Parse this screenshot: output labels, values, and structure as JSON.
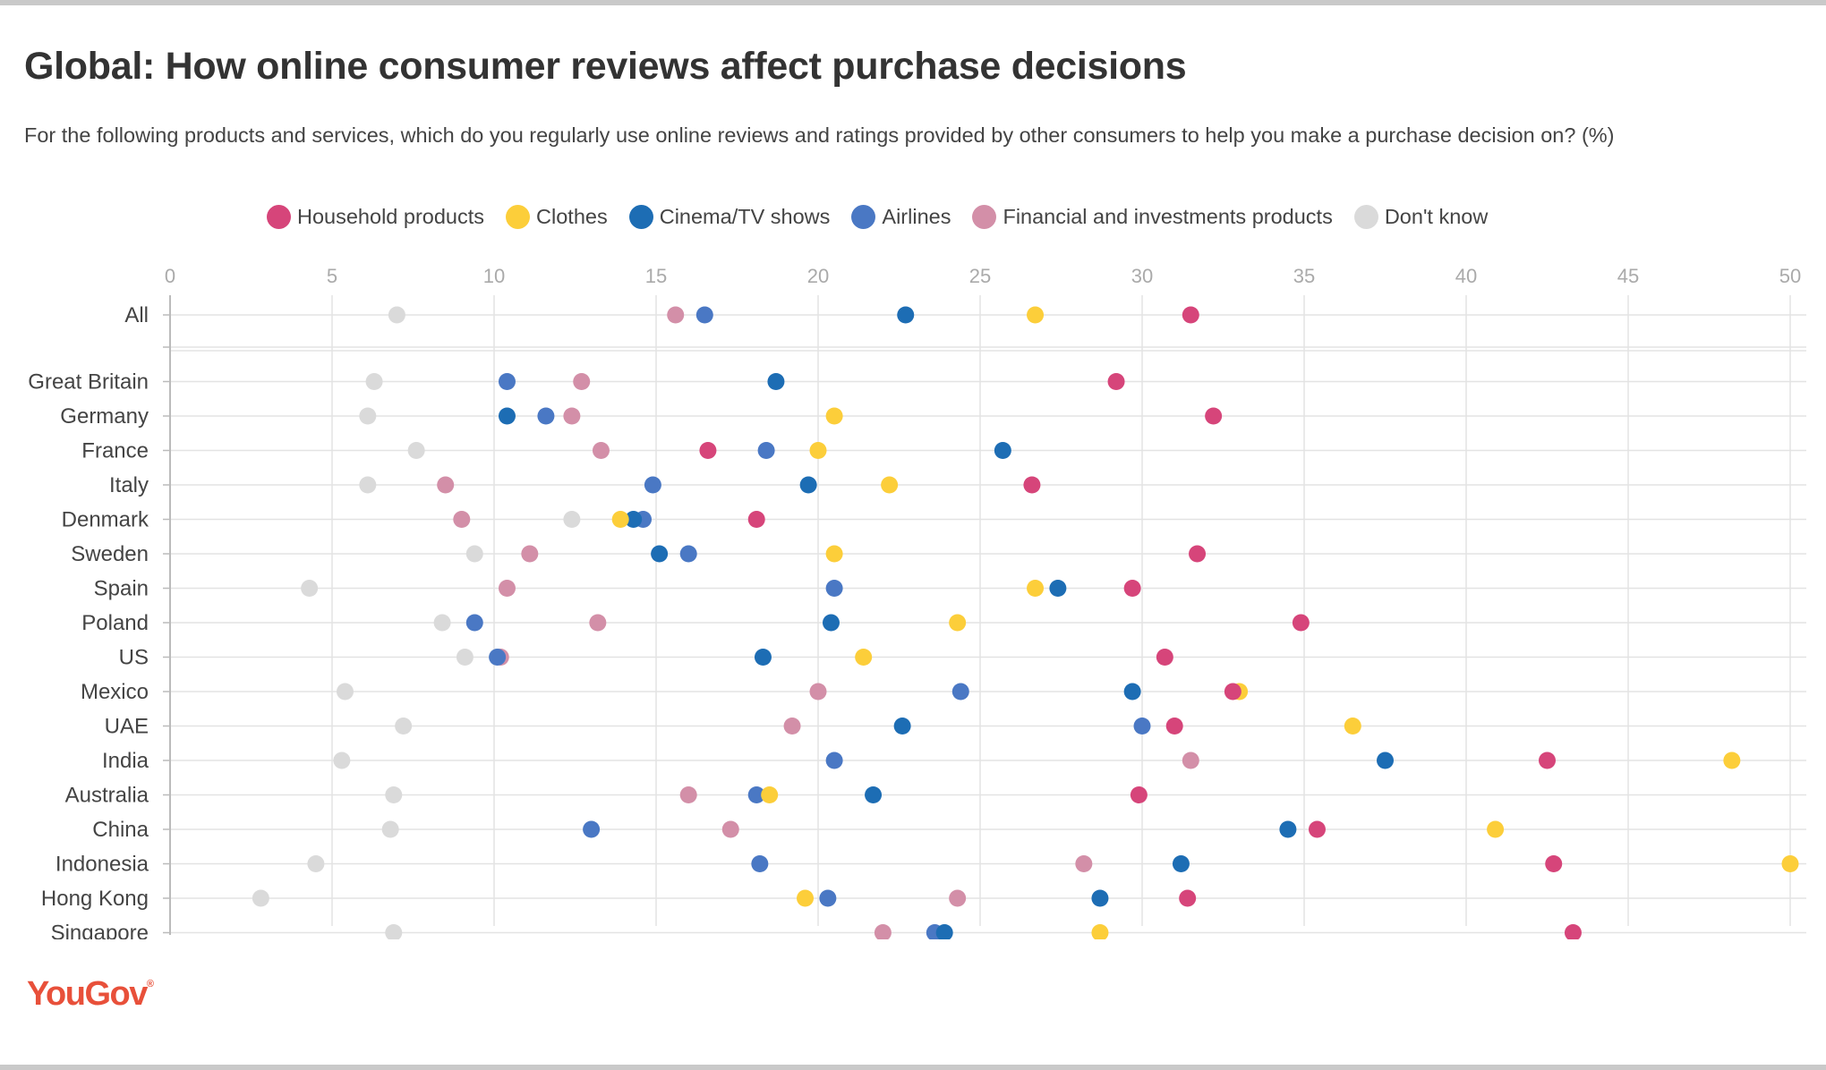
{
  "title": "Global: How online consumer reviews affect purchase decisions",
  "subtitle": "For the following products and services, which do you regularly use online reviews and ratings provided by other consumers to help you make a purchase decision on? (%)",
  "logo_text": "YouGov",
  "logo_mark": "®",
  "colors": {
    "household": "#d6457a",
    "clothes": "#fcce3a",
    "cinema": "#1d6db4",
    "airlines": "#4a78c4",
    "financial": "#d38fa8",
    "dontknow": "#dadada",
    "grid": "#e3e3e3",
    "axis": "#bbbbbb",
    "tick_text": "#aaaaaa",
    "label_text": "#444444"
  },
  "legend": [
    {
      "key": "household",
      "label": "Household products"
    },
    {
      "key": "clothes",
      "label": "Clothes"
    },
    {
      "key": "cinema",
      "label": "Cinema/TV shows"
    },
    {
      "key": "airlines",
      "label": "Airlines"
    },
    {
      "key": "financial",
      "label": "Financial and investments products"
    },
    {
      "key": "dontknow",
      "label": "Don't know"
    }
  ],
  "chart_data": {
    "type": "scatter",
    "orientation": "horizontal-dot-plot",
    "xlim": [
      0,
      50
    ],
    "xticks": [
      0,
      5,
      10,
      15,
      20,
      25,
      30,
      35,
      40,
      45,
      50
    ],
    "grid": true,
    "legend_position": "top",
    "categories": [
      "All",
      "",
      "Great Britain",
      "Germany",
      "France",
      "Italy",
      "Denmark",
      "Sweden",
      "Spain",
      "Poland",
      "US",
      "Mexico",
      "UAE",
      "India",
      "Australia",
      "China",
      "Indonesia",
      "Hong Kong",
      "Singapore"
    ],
    "series": [
      {
        "key": "dontknow",
        "name": "Don't know",
        "values": [
          7,
          null,
          6.3,
          6.1,
          7.6,
          6.1,
          12.4,
          9.4,
          4.3,
          8.4,
          9.1,
          5.4,
          7.2,
          5.3,
          6.9,
          6.8,
          4.5,
          2.8,
          6.9
        ]
      },
      {
        "key": "financial",
        "name": "Financial and investments products",
        "values": [
          15.6,
          null,
          12.7,
          12.4,
          13.3,
          8.5,
          9,
          11.1,
          10.4,
          13.2,
          10.2,
          20,
          19.2,
          31.5,
          16,
          17.3,
          28.2,
          24.3,
          22
        ]
      },
      {
        "key": "airlines",
        "name": "Airlines",
        "values": [
          16.5,
          null,
          10.4,
          11.6,
          18.4,
          14.9,
          14.6,
          16,
          20.5,
          9.4,
          10.1,
          24.4,
          30,
          20.5,
          18.1,
          13,
          18.2,
          20.3,
          23.6
        ]
      },
      {
        "key": "cinema",
        "name": "Cinema/TV shows",
        "values": [
          22.7,
          null,
          18.7,
          10.4,
          25.7,
          19.7,
          14.3,
          15.1,
          27.4,
          20.4,
          18.3,
          29.7,
          22.6,
          37.5,
          21.7,
          34.5,
          31.2,
          28.7,
          23.9
        ]
      },
      {
        "key": "clothes",
        "name": "Clothes",
        "values": [
          26.7,
          null,
          null,
          20.5,
          20,
          22.2,
          13.9,
          20.5,
          26.7,
          24.3,
          21.4,
          33,
          36.5,
          48.2,
          18.5,
          40.9,
          50,
          19.6,
          28.7
        ]
      },
      {
        "key": "household",
        "name": "Household products",
        "values": [
          31.5,
          null,
          29.2,
          32.2,
          16.6,
          26.6,
          18.1,
          31.7,
          29.7,
          34.9,
          30.7,
          32.8,
          31,
          42.5,
          29.9,
          35.4,
          42.7,
          31.4,
          43.3
        ]
      }
    ],
    "title": "Global: How online consumer reviews affect purchase decisions",
    "xlabel": "",
    "ylabel": ""
  }
}
